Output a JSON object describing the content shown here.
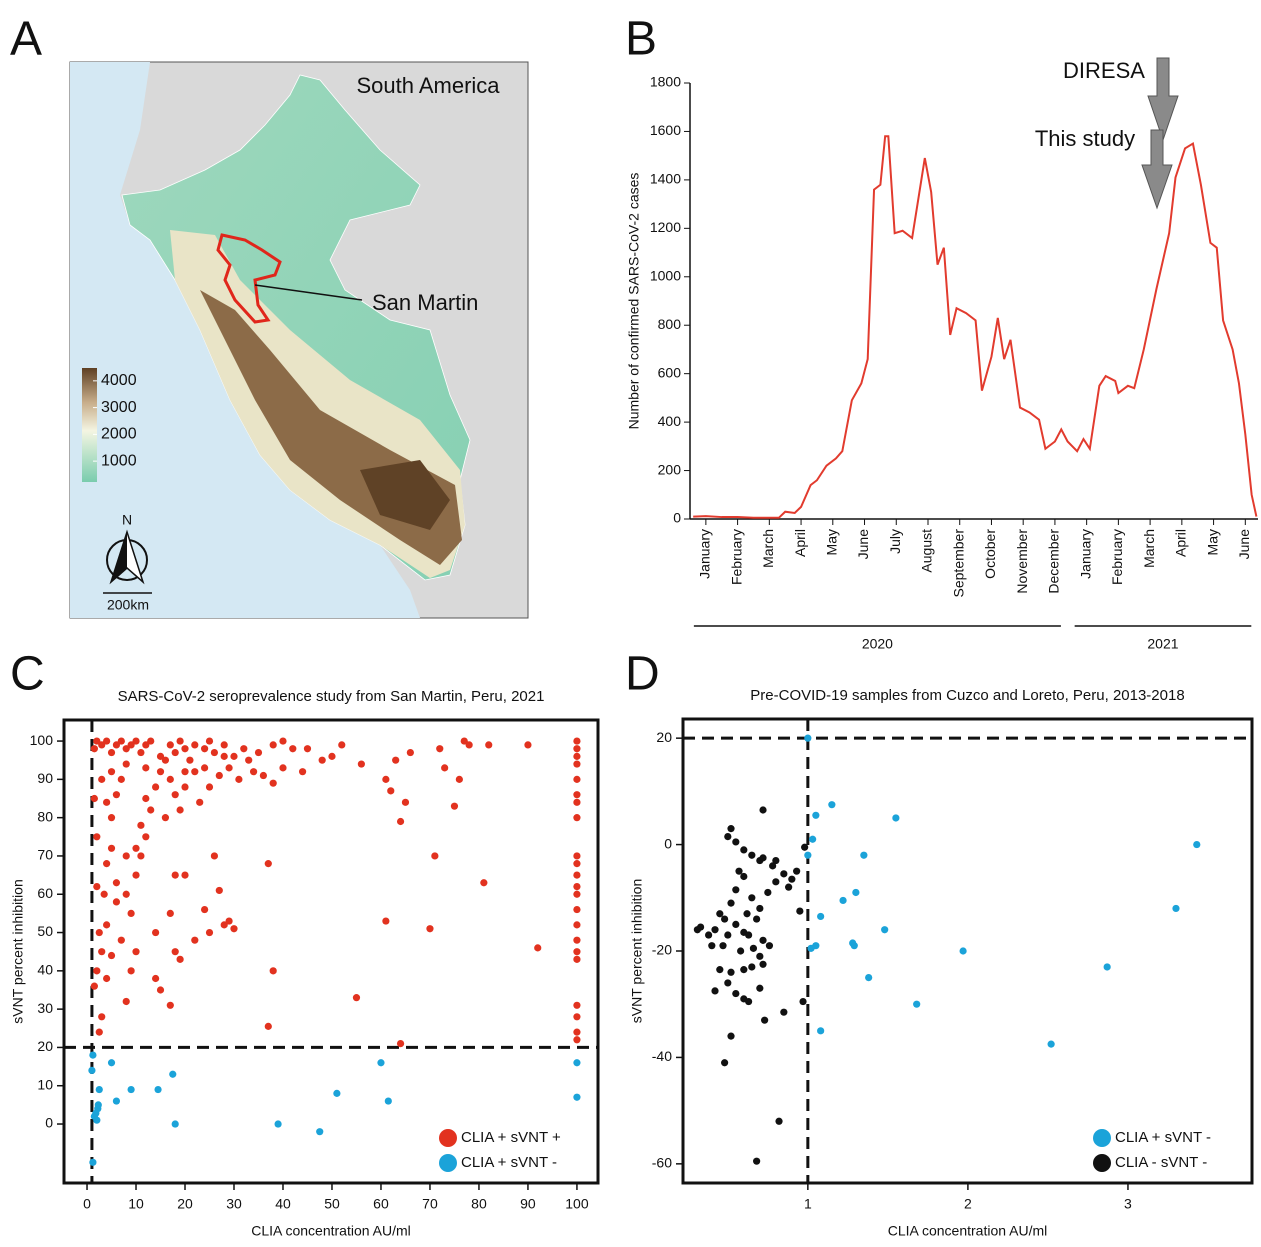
{
  "panel_labels": [
    "A",
    "B",
    "C",
    "D"
  ],
  "map": {
    "title": "South America",
    "region_label": "San Martin",
    "legend_ticks": [
      4000,
      3000,
      2000,
      1000
    ],
    "legend_lim": [
      220,
      4480
    ],
    "north_label": "N",
    "scale_label": "200km"
  },
  "chart_data": [
    {
      "type": "line",
      "ylabel": "Number of confirmed SARS-CoV-2 cases",
      "annotations": [
        "DIRESA",
        "This study"
      ],
      "year_labels": [
        "2020",
        "2021"
      ],
      "color": "#e23b2e",
      "xlim": [
        -0.5,
        17.4
      ],
      "ylim": [
        0,
        1800
      ],
      "xticks": [
        {
          "value": 0,
          "label": "January"
        },
        {
          "value": 1,
          "label": "February"
        },
        {
          "value": 2,
          "label": "March"
        },
        {
          "value": 3,
          "label": "April"
        },
        {
          "value": 4,
          "label": "May"
        },
        {
          "value": 5,
          "label": "June"
        },
        {
          "value": 6,
          "label": "July"
        },
        {
          "value": 7,
          "label": "August"
        },
        {
          "value": 8,
          "label": "September"
        },
        {
          "value": 9,
          "label": "October"
        },
        {
          "value": 10,
          "label": "November"
        },
        {
          "value": 11,
          "label": "December"
        },
        {
          "value": 12,
          "label": "January"
        },
        {
          "value": 13,
          "label": "February"
        },
        {
          "value": 14,
          "label": "March"
        },
        {
          "value": 15,
          "label": "April"
        },
        {
          "value": 16,
          "label": "May"
        },
        {
          "value": 17,
          "label": "June"
        }
      ],
      "yticks": [
        0,
        200,
        400,
        600,
        800,
        1000,
        1200,
        1400,
        1600,
        1800
      ],
      "x": [
        -0.4,
        0,
        0.5,
        1,
        1.5,
        2,
        2.3,
        2.5,
        2.8,
        3,
        3.3,
        3.5,
        3.8,
        4.1,
        4.3,
        4.6,
        4.9,
        5.1,
        5.3,
        5.5,
        5.65,
        5.75,
        5.95,
        6.2,
        6.5,
        6.9,
        7.1,
        7.3,
        7.5,
        7.7,
        7.9,
        8.2,
        8.5,
        8.7,
        9,
        9.2,
        9.4,
        9.6,
        9.9,
        10.2,
        10.5,
        10.7,
        11,
        11.2,
        11.4,
        11.7,
        11.9,
        12.1,
        12.4,
        12.6,
        12.9,
        13,
        13.3,
        13.5,
        13.8,
        14.2,
        14.6,
        14.8,
        15.1,
        15.35,
        15.6,
        15.9,
        16.1,
        16.3,
        16.6,
        16.8,
        17,
        17.2,
        17.35
      ],
      "values": [
        10,
        12,
        8,
        8,
        5,
        5,
        5,
        30,
        25,
        50,
        140,
        160,
        220,
        250,
        280,
        490,
        560,
        660,
        1360,
        1380,
        1580,
        1580,
        1180,
        1190,
        1160,
        1490,
        1350,
        1050,
        1120,
        760,
        870,
        850,
        820,
        530,
        670,
        830,
        660,
        740,
        460,
        440,
        410,
        290,
        320,
        370,
        320,
        280,
        330,
        290,
        550,
        590,
        570,
        520,
        550,
        540,
        700,
        950,
        1180,
        1410,
        1530,
        1550,
        1380,
        1140,
        1120,
        820,
        700,
        560,
        350,
        100,
        10
      ]
    },
    {
      "type": "scatter",
      "title": "SARS-CoV-2 seroprevalence study from San Martin, Peru,  2021",
      "xlabel": "CLIA concentration AU/ml",
      "ylabel": "sVNT percent inhibition",
      "xlim": [
        -4.7,
        104.3
      ],
      "ylim": [
        -15.4,
        105.5
      ],
      "xticks": [
        0,
        10,
        20,
        30,
        40,
        50,
        60,
        70,
        80,
        90,
        100
      ],
      "yticks": [
        0,
        10,
        20,
        30,
        40,
        50,
        60,
        70,
        80,
        90,
        100
      ],
      "threshold_lines": {
        "x": 1,
        "y": 20
      },
      "legend": "lower right",
      "series": [
        {
          "name": "CLIA + sVNT +",
          "color": "#e2321f",
          "x": [
            100,
            100,
            100,
            100,
            100,
            100,
            100,
            100,
            100,
            100,
            100,
            100,
            100,
            100,
            100,
            100,
            100,
            100,
            100,
            100,
            100,
            100,
            64,
            55,
            37,
            38,
            37,
            61,
            70,
            71,
            81,
            92,
            64,
            65,
            61,
            62,
            66,
            75,
            76,
            73,
            72,
            77,
            78,
            82,
            90,
            63,
            56,
            50,
            52,
            45,
            42,
            40,
            38,
            35,
            33,
            32,
            30,
            28,
            26,
            25,
            24,
            22,
            21,
            20,
            19,
            18,
            17,
            15,
            13,
            12,
            11,
            10,
            9,
            8,
            7,
            6,
            5,
            4,
            3,
            2,
            1.5,
            1.5,
            2,
            2,
            2.5,
            2,
            1.5,
            3,
            2.5,
            3,
            4,
            3.5,
            4,
            5,
            5,
            6,
            7,
            8,
            8,
            9,
            10,
            10,
            11,
            12,
            13,
            14,
            15,
            16,
            17,
            18,
            19,
            20,
            22,
            23,
            25,
            27,
            29,
            31,
            34,
            36,
            38,
            40,
            44,
            48,
            14,
            15,
            14,
            17,
            18,
            19,
            17,
            18,
            20,
            22,
            24,
            25,
            26,
            27,
            28,
            29,
            30,
            6,
            7,
            9,
            8,
            5,
            4,
            6,
            10,
            11,
            12,
            3,
            4,
            5,
            8,
            12,
            16,
            20,
            24,
            28
          ],
          "values": [
            100,
            98,
            96,
            94,
            90,
            86,
            84,
            80,
            70,
            68,
            65,
            62,
            60,
            56,
            52,
            48,
            45,
            43,
            31,
            28,
            24,
            22,
            21,
            33,
            25.5,
            40,
            68,
            53,
            51,
            70,
            63,
            46,
            79,
            84,
            90,
            87,
            97,
            83,
            90,
            93,
            98,
            100,
            99,
            99,
            99,
            95,
            94,
            96,
            99,
            98,
            98,
            100,
            99,
            97,
            95,
            98,
            96,
            99,
            97,
            100,
            98,
            99,
            95,
            98,
            100,
            97,
            99,
            96,
            100,
            99,
            97,
            100,
            99,
            98,
            100,
            99,
            97,
            100,
            99,
            100,
            98,
            85,
            75,
            62,
            50,
            40,
            36,
            28,
            24,
            45,
            52,
            60,
            68,
            72,
            80,
            86,
            90,
            70,
            60,
            55,
            45,
            65,
            78,
            85,
            82,
            88,
            92,
            80,
            90,
            86,
            82,
            88,
            92,
            84,
            88,
            91,
            93,
            90,
            92,
            91,
            89,
            93,
            92,
            95,
            50,
            35,
            38,
            31,
            45,
            43,
            55,
            65,
            65,
            48,
            56,
            50,
            70,
            61,
            52,
            53,
            51,
            58,
            48,
            40,
            32,
            44,
            38,
            63,
            72,
            70,
            75,
            90,
            84,
            92,
            94,
            93,
            95,
            92,
            93,
            96
          ]
        },
        {
          "name": "CLIA + sVNT -",
          "color": "#1ba3d9",
          "x": [
            1.2,
            1,
            1.2,
            1.5,
            2,
            2.2,
            2.3,
            2.5,
            5,
            6,
            9,
            14.5,
            17.5,
            18,
            39,
            47.5,
            51,
            60,
            61.5,
            100,
            100,
            1.8
          ],
          "values": [
            -10,
            14,
            18,
            2,
            1,
            4,
            5,
            9,
            16,
            6,
            9,
            9,
            13,
            0,
            0,
            -2,
            8,
            16,
            6,
            16,
            7,
            2.8
          ]
        }
      ]
    },
    {
      "type": "scatter",
      "title": "Pre-COVID-19 samples from Cuzco and Loreto, Peru, 2013-2018",
      "xlabel": "CLIA concentration AU/ml",
      "ylabel": "sVNT percent inhibition",
      "xlim": [
        0.22,
        3.775
      ],
      "ylim": [
        -63.6,
        23.6
      ],
      "xticks": [
        1,
        2,
        3
      ],
      "yticks": [
        20,
        0,
        -20,
        -40,
        -60
      ],
      "threshold_lines": {
        "x": 1,
        "y": 20
      },
      "legend": "lower right",
      "series": [
        {
          "name": "CLIA + sVNT -",
          "color": "#1ba3d9",
          "x": [
            1,
            1.05,
            1.03,
            1.15,
            1.55,
            1,
            1.08,
            1.3,
            1.35,
            1.22,
            1.28,
            1.29,
            1.05,
            1.02,
            1.38,
            1.48,
            1.68,
            1.97,
            2.52,
            2.87,
            3.3,
            3.43,
            1.08
          ],
          "values": [
            20,
            5.5,
            1,
            7.5,
            5,
            -2,
            -13.5,
            -9,
            -2,
            -10.5,
            -18.5,
            -19,
            -19,
            -19.5,
            -25,
            -16,
            -30,
            -20,
            -37.5,
            -23,
            -12,
            0,
            -35
          ]
        },
        {
          "name": "CLIA -  sVNT -",
          "color": "#111111",
          "x": [
            0.72,
            0.52,
            0.5,
            0.55,
            0.6,
            0.65,
            0.7,
            0.72,
            0.78,
            0.85,
            0.9,
            0.98,
            0.95,
            0.88,
            0.8,
            0.75,
            0.7,
            0.65,
            0.6,
            0.55,
            0.52,
            0.48,
            0.45,
            0.42,
            0.38,
            0.33,
            0.31,
            0.4,
            0.5,
            0.55,
            0.6,
            0.63,
            0.68,
            0.72,
            0.76,
            0.7,
            0.65,
            0.6,
            0.52,
            0.45,
            0.42,
            0.5,
            0.55,
            0.6,
            0.63,
            0.7,
            0.73,
            0.85,
            0.97,
            0.52,
            0.48,
            0.82,
            0.68,
            0.57,
            0.62,
            0.66,
            0.72,
            0.58,
            0.47,
            0.93,
            0.8
          ],
          "values": [
            6.5,
            3,
            1.5,
            0.5,
            -1,
            -2,
            -3,
            -2.5,
            -4,
            -5.5,
            -6.5,
            -0.5,
            -12.5,
            -8,
            -7,
            -9,
            -12,
            -10,
            -6,
            -8.5,
            -11,
            -14,
            -13,
            -16,
            -17,
            -15.5,
            -16,
            -19,
            -17,
            -15,
            -16.5,
            -17,
            -14,
            -18,
            -19,
            -21,
            -23,
            -23.5,
            -24,
            -23.5,
            -27.5,
            -26,
            -28,
            -29,
            -29.5,
            -27,
            -33,
            -31.5,
            -29.5,
            -36,
            -41,
            -52,
            -59.5,
            -5,
            -13,
            -19.5,
            -22.5,
            -20,
            -19,
            -5,
            -3
          ]
        }
      ]
    }
  ]
}
